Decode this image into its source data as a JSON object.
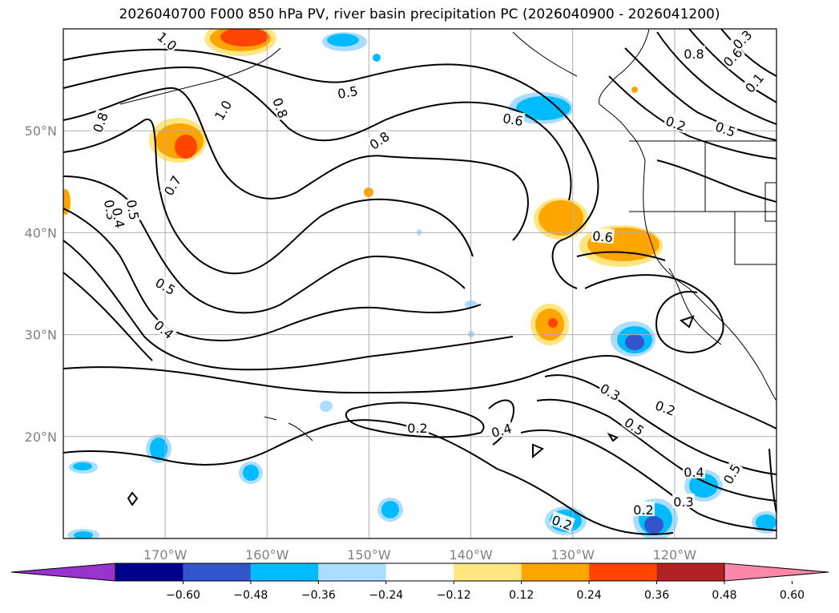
{
  "title": "2026040700 F000 850 hPa PV, river basin precipitation PC (2026040900 - 2026041200)",
  "map": {
    "lat_labels": [
      "50°N",
      "40°N",
      "30°N",
      "20°N"
    ],
    "lon_labels": [
      "170°W",
      "160°W",
      "150°W",
      "140°W",
      "130°W",
      "120°W"
    ],
    "lat_range": [
      10,
      60
    ],
    "lon_range": [
      -180,
      -110
    ],
    "gridlines": true
  },
  "colorbar": {
    "ticks": [
      "−0.60",
      "−0.48",
      "−0.36",
      "−0.24",
      "−0.12",
      "0.12",
      "0.24",
      "0.36",
      "0.48",
      "0.60"
    ],
    "colors": [
      "#9933cc",
      "#00008b",
      "#3355cc",
      "#00bbff",
      "#aaddff",
      "#ffffff",
      "#ffe680",
      "#ffa500",
      "#ff4500",
      "#b22222",
      "#ff88aa"
    ]
  },
  "contour_labels": [
    "1.0",
    "0.8",
    "0.5",
    "0.8",
    "1.0",
    "0.8",
    "0.7",
    "0.3",
    "0.4",
    "0.5",
    "0.5",
    "0.4",
    "0.6",
    "0.6",
    "0.2",
    "0.5",
    "0.8",
    "0.6",
    "0.1",
    "0.3",
    "0.2",
    "0.5",
    "0.3",
    "0.2",
    "0.4",
    "0.4",
    "0.5",
    "0.3",
    "0.2",
    "0.2"
  ]
}
